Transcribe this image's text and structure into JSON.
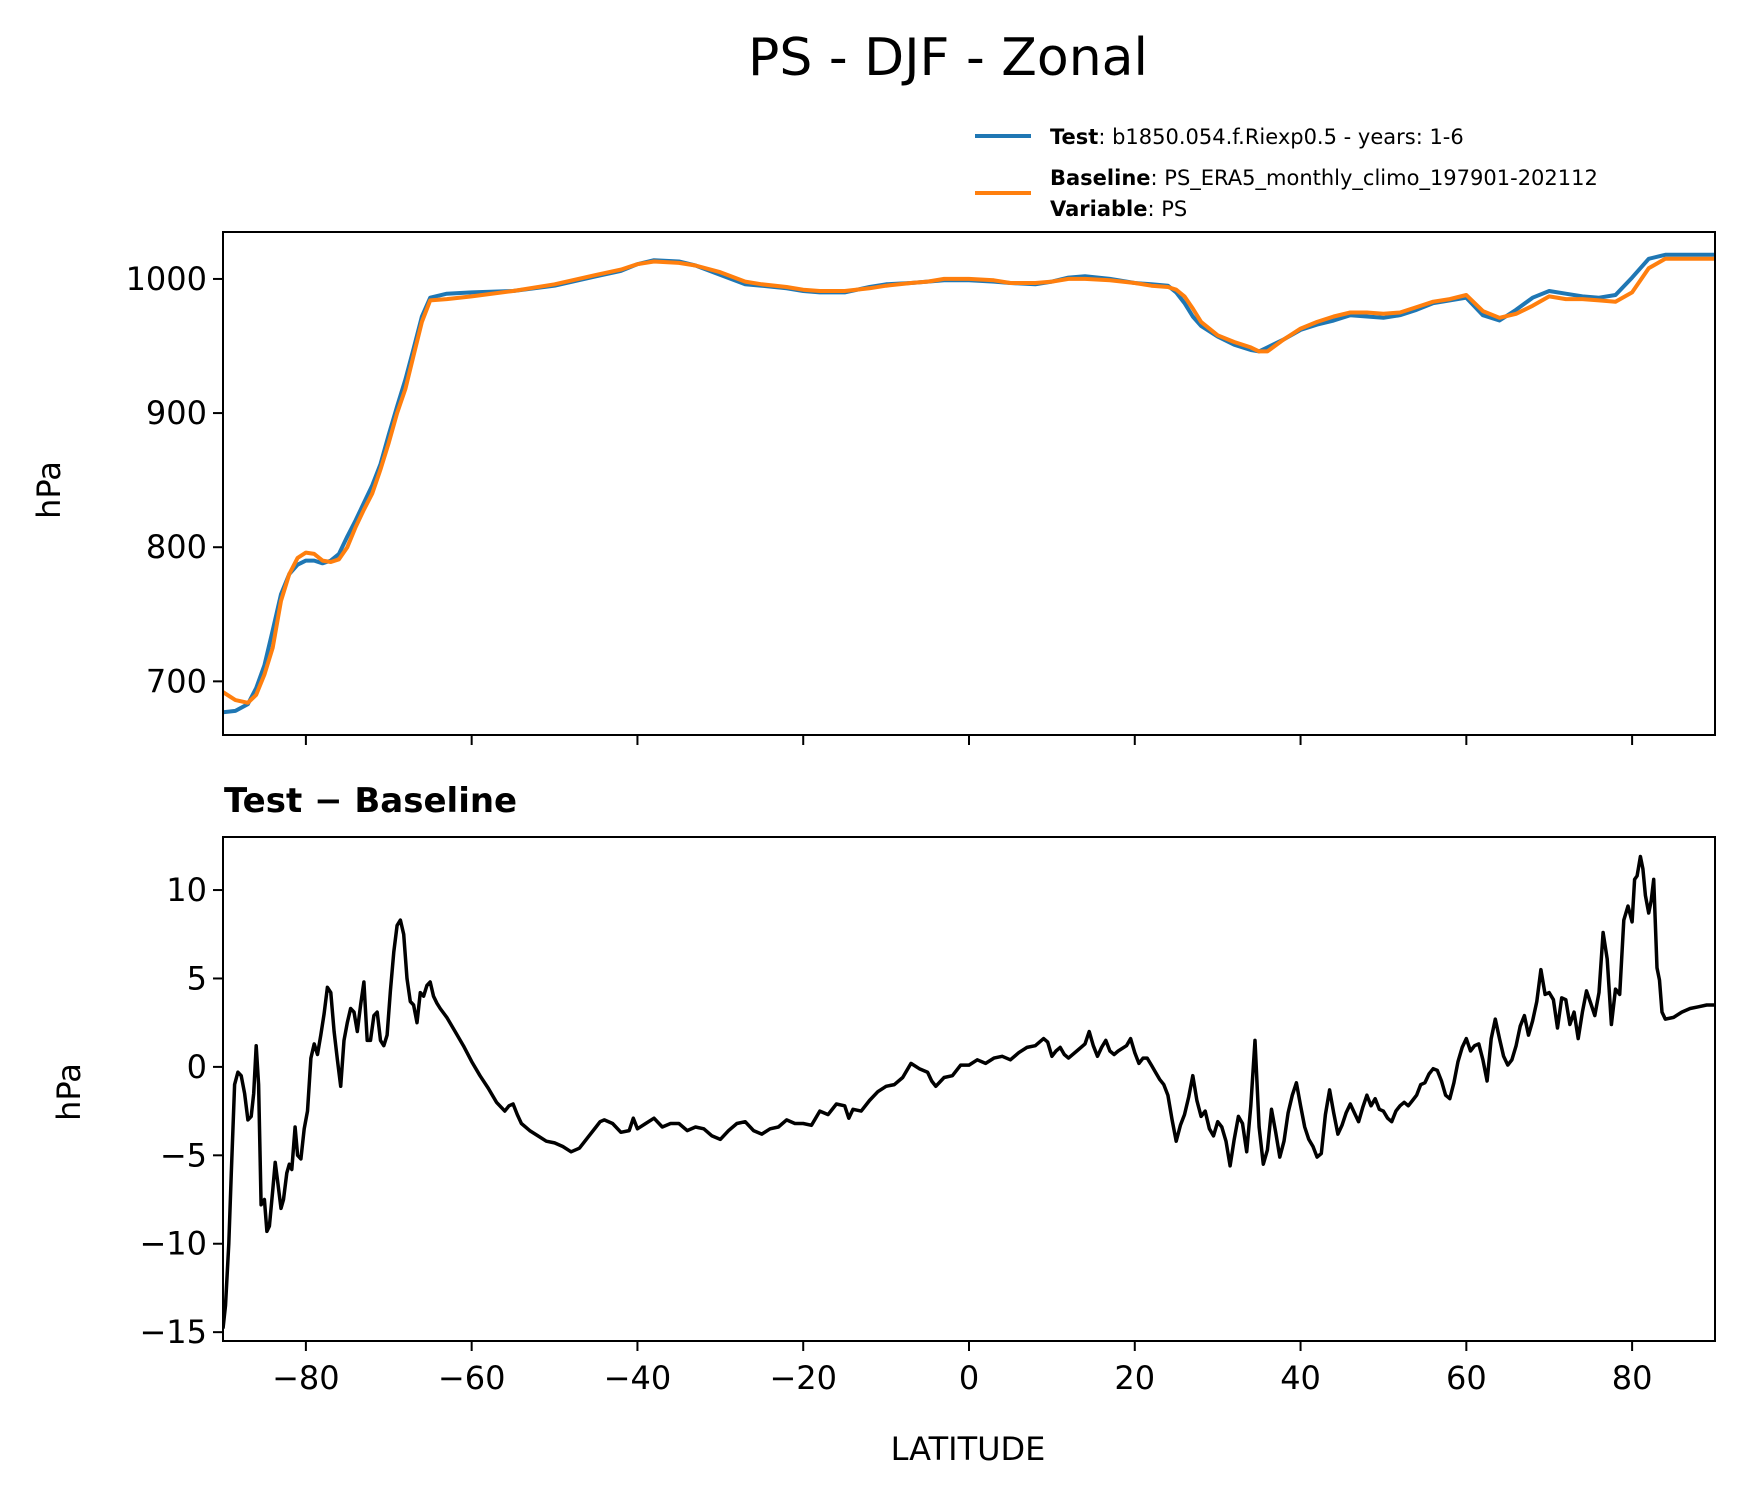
{
  "figure": {
    "title": "PS - DJF - Zonal"
  },
  "chart_data": [
    {
      "type": "line",
      "panel": "top",
      "xlabel": "",
      "ylabel": "hPa",
      "xlim": [
        -90,
        90
      ],
      "ylim": [
        660,
        1035
      ],
      "yticks": [
        700,
        800,
        900,
        1000
      ],
      "yticklabels": [
        "700",
        "800",
        "900",
        "1000"
      ],
      "xticks": [
        -80,
        -60,
        -40,
        -20,
        0,
        20,
        40,
        60,
        80
      ],
      "show_xticklabels": false,
      "grid": false,
      "legend_placement": "above, right",
      "legend": [
        {
          "key": "Test",
          "sep": ": ",
          "text": "b1850.054.f.Riexp0.5 - years: 1-6",
          "color": "#1f77b4"
        },
        {
          "key": "Baseline",
          "sep": ": ",
          "text": "PS_ERA5_monthly_climo_197901-202112",
          "color": "#ff7f0e"
        },
        {
          "key": "Variable",
          "sep": ": ",
          "text": "PS",
          "color": null
        }
      ],
      "series": [
        {
          "name": "Test",
          "color": "#1f77b4",
          "x": [
            -90,
            -88.5,
            -87,
            -86,
            -85,
            -84,
            -83,
            -82,
            -81,
            -80,
            -79,
            -78,
            -77,
            -76,
            -75,
            -74,
            -73,
            -72,
            -71,
            -70,
            -69,
            -68,
            -67,
            -66,
            -65,
            -63,
            -60,
            -55,
            -50,
            -45,
            -42,
            -40,
            -38,
            -35,
            -33,
            -30,
            -27,
            -25,
            -22,
            -20,
            -18,
            -15,
            -12,
            -10,
            -7,
            -5,
            -3,
            0,
            3,
            5,
            8,
            10,
            12,
            14,
            17,
            20,
            22,
            24,
            25,
            26,
            27,
            28,
            30,
            32,
            34,
            35,
            36,
            38,
            40,
            42,
            44,
            46,
            48,
            50,
            52,
            54,
            56,
            58,
            60,
            62,
            64,
            66,
            68,
            70,
            72,
            74,
            76,
            78,
            80,
            82,
            84,
            86,
            88,
            90
          ],
          "y": [
            677,
            678,
            683,
            695,
            712,
            738,
            765,
            780,
            787,
            790,
            790,
            788,
            790,
            795,
            808,
            820,
            833,
            846,
            862,
            884,
            905,
            925,
            948,
            972,
            986,
            989,
            990,
            991,
            995,
            1002,
            1006,
            1011,
            1014,
            1013,
            1010,
            1003,
            996,
            995,
            993,
            991,
            990,
            990,
            994,
            996,
            997,
            998,
            999,
            999,
            998,
            997,
            996,
            998,
            1001,
            1002,
            1000,
            997,
            996,
            995,
            990,
            982,
            972,
            965,
            957,
            951,
            947,
            946,
            949,
            955,
            962,
            966,
            969,
            973,
            972,
            971,
            973,
            977,
            982,
            984,
            986,
            973,
            969,
            977,
            986,
            991,
            989,
            987,
            986,
            988,
            1001,
            1015,
            1018,
            1018,
            1018,
            1018
          ]
        },
        {
          "name": "Baseline",
          "color": "#ff7f0e",
          "x": [
            -90,
            -88.5,
            -87,
            -86,
            -85,
            -84,
            -83,
            -82,
            -81,
            -80,
            -79,
            -78,
            -77,
            -76,
            -75,
            -74,
            -73,
            -72,
            -71,
            -70,
            -69,
            -68,
            -67,
            -66,
            -65,
            -63,
            -60,
            -55,
            -50,
            -45,
            -42,
            -40,
            -38,
            -35,
            -33,
            -30,
            -27,
            -25,
            -22,
            -20,
            -18,
            -15,
            -12,
            -10,
            -7,
            -5,
            -3,
            0,
            3,
            5,
            8,
            10,
            12,
            14,
            17,
            20,
            22,
            24,
            25,
            26,
            27,
            28,
            30,
            32,
            34,
            35,
            36,
            38,
            40,
            42,
            44,
            46,
            48,
            50,
            52,
            54,
            56,
            58,
            60,
            62,
            64,
            66,
            68,
            70,
            72,
            74,
            76,
            78,
            80,
            82,
            84,
            86,
            88,
            90
          ],
          "y": [
            692,
            686,
            684,
            690,
            705,
            725,
            760,
            780,
            792,
            796,
            795,
            790,
            789,
            791,
            800,
            815,
            828,
            840,
            858,
            878,
            900,
            918,
            943,
            968,
            984,
            985,
            987,
            991,
            996,
            1003,
            1007,
            1011,
            1013,
            1012,
            1010,
            1005,
            998,
            996,
            994,
            992,
            991,
            991,
            993,
            995,
            997,
            998,
            1000,
            1000,
            999,
            997,
            997,
            998,
            1000,
            1000,
            999,
            997,
            995,
            994,
            992,
            987,
            978,
            968,
            958,
            953,
            949,
            946,
            946,
            955,
            963,
            968,
            972,
            975,
            975,
            974,
            975,
            979,
            983,
            985,
            988,
            976,
            971,
            974,
            980,
            987,
            985,
            985,
            984,
            983,
            990,
            1008,
            1015,
            1015,
            1015,
            1015
          ]
        }
      ]
    },
    {
      "type": "line",
      "panel": "bottom",
      "title": "Test − Baseline",
      "xlabel": "LATITUDE",
      "ylabel": "hPa",
      "xlim": [
        -90,
        90
      ],
      "ylim": [
        -15.5,
        13
      ],
      "yticks": [
        -15,
        -10,
        -5,
        0,
        5,
        10
      ],
      "yticklabels": [
        "−15",
        "−10",
        "−5",
        "0",
        "5",
        "10"
      ],
      "xticks": [
        -80,
        -60,
        -40,
        -20,
        0,
        20,
        40,
        60,
        80
      ],
      "xticklabels": [
        "−80",
        "−60",
        "−40",
        "−20",
        "0",
        "20",
        "40",
        "60",
        "80"
      ],
      "grid": false,
      "series": [
        {
          "color": "#000000",
          "x": [
            -90,
            -89.7,
            -89.3,
            -89,
            -88.6,
            -88.2,
            -87.8,
            -87.4,
            -87,
            -86.6,
            -86.3,
            -86,
            -85.7,
            -85.4,
            -85,
            -84.7,
            -84.4,
            -84,
            -83.7,
            -83.4,
            -83,
            -82.7,
            -82.3,
            -82,
            -81.7,
            -81.3,
            -81,
            -80.6,
            -80.2,
            -79.8,
            -79.4,
            -79,
            -78.6,
            -78.2,
            -77.8,
            -77.4,
            -77,
            -76.6,
            -76.2,
            -75.8,
            -75.4,
            -75,
            -74.6,
            -74.2,
            -73.8,
            -73.4,
            -73,
            -72.6,
            -72.2,
            -71.8,
            -71.4,
            -71,
            -70.6,
            -70.2,
            -69.8,
            -69.4,
            -69,
            -68.6,
            -68.2,
            -67.8,
            -67.4,
            -67,
            -66.6,
            -66.2,
            -65.8,
            -65.4,
            -65,
            -64.6,
            -64.2,
            -63.8,
            -63,
            -62,
            -61,
            -60,
            -59,
            -58,
            -57,
            -56,
            -55.5,
            -55,
            -54.5,
            -54,
            -53,
            -52,
            -51,
            -50,
            -49,
            -48,
            -47,
            -46,
            -45,
            -44.5,
            -44,
            -43,
            -42,
            -41,
            -40.5,
            -40,
            -39,
            -38,
            -37,
            -36,
            -35,
            -34,
            -33,
            -32,
            -31,
            -30,
            -29,
            -28,
            -27,
            -26,
            -25,
            -24,
            -23,
            -22,
            -21,
            -20,
            -19,
            -18,
            -17,
            -16,
            -15,
            -14.5,
            -14,
            -13,
            -12,
            -11,
            -10,
            -9,
            -8,
            -7,
            -6,
            -5,
            -4.5,
            -4,
            -3,
            -2,
            -1,
            0,
            1,
            2,
            3,
            4,
            5,
            6,
            7,
            8,
            9,
            9.5,
            10,
            10.5,
            11,
            11.5,
            12,
            13,
            14,
            14.5,
            15,
            15.5,
            16,
            16.5,
            17,
            17.5,
            18,
            19,
            19.5,
            20,
            20.5,
            21,
            21.5,
            22,
            22.5,
            23,
            23.5,
            24,
            24.5,
            25,
            25.5,
            26,
            26.5,
            27,
            27.5,
            28,
            28.5,
            29,
            29.5,
            30,
            30.5,
            31,
            31.5,
            32,
            32.5,
            33,
            33.5,
            34,
            34.5,
            35,
            35.5,
            36,
            36.5,
            37,
            37.5,
            38,
            38.5,
            39,
            39.5,
            40,
            40.5,
            41,
            41.5,
            42,
            42.5,
            43,
            43.5,
            44,
            44.5,
            45,
            45.5,
            46,
            46.5,
            47,
            47.5,
            48,
            48.5,
            49,
            49.5,
            50,
            50.5,
            51,
            51.5,
            52,
            52.5,
            53,
            53.5,
            54,
            54.5,
            55,
            55.5,
            56,
            56.5,
            57,
            57.5,
            58,
            58.5,
            59,
            59.5,
            60,
            60.5,
            61,
            61.5,
            62,
            62.5,
            63,
            63.5,
            64,
            64.5,
            65,
            65.5,
            66,
            66.5,
            67,
            67.5,
            68,
            68.5,
            69,
            69.5,
            70,
            70.5,
            71,
            71.5,
            72,
            72.5,
            73,
            73.5,
            74,
            74.5,
            75,
            75.5,
            76,
            76.5,
            77,
            77.5,
            78,
            78.5,
            79,
            79.5,
            80,
            80.3,
            80.6,
            81,
            81.3,
            81.6,
            82,
            82.3,
            82.6,
            83,
            83.3,
            83.6,
            84,
            85,
            86,
            87,
            88,
            89,
            90
          ],
          "y": [
            -14.8,
            -13.5,
            -10,
            -6,
            -1,
            -0.3,
            -0.5,
            -1.5,
            -3,
            -2.8,
            -1.5,
            1.2,
            -1,
            -7.8,
            -7.5,
            -9.3,
            -9,
            -7,
            -5.4,
            -6.5,
            -8,
            -7.5,
            -6,
            -5.5,
            -5.8,
            -3.4,
            -5,
            -5.2,
            -3.5,
            -2.5,
            0.5,
            1.3,
            0.7,
            1.8,
            3,
            4.5,
            4.2,
            2,
            0.4,
            -1.1,
            1.5,
            2.5,
            3.3,
            3.1,
            2,
            3.5,
            4.8,
            1.5,
            1.5,
            2.9,
            3.1,
            1.5,
            1.2,
            1.8,
            4.3,
            6.5,
            8,
            8.3,
            7.5,
            5,
            3.7,
            3.5,
            2.5,
            4.2,
            4,
            4.6,
            4.8,
            4,
            3.6,
            3.3,
            2.8,
            2,
            1.2,
            0.3,
            -0.5,
            -1.2,
            -2,
            -2.5,
            -2.2,
            -2.1,
            -2.7,
            -3.2,
            -3.6,
            -3.9,
            -4.2,
            -4.3,
            -4.5,
            -4.8,
            -4.6,
            -4,
            -3.4,
            -3.1,
            -3,
            -3.2,
            -3.7,
            -3.6,
            -2.9,
            -3.5,
            -3.2,
            -2.9,
            -3.4,
            -3.2,
            -3.2,
            -3.6,
            -3.4,
            -3.5,
            -3.9,
            -4.1,
            -3.6,
            -3.2,
            -3.1,
            -3.6,
            -3.8,
            -3.5,
            -3.4,
            -3,
            -3.2,
            -3.2,
            -3.3,
            -2.5,
            -2.7,
            -2.1,
            -2.2,
            -2.9,
            -2.4,
            -2.5,
            -1.9,
            -1.4,
            -1.1,
            -1,
            -0.6,
            0.2,
            -0.1,
            -0.3,
            -0.8,
            -1.1,
            -0.6,
            -0.5,
            0.1,
            0.1,
            0.4,
            0.2,
            0.5,
            0.6,
            0.4,
            0.8,
            1.1,
            1.2,
            1.6,
            1.4,
            0.6,
            0.9,
            1.1,
            0.7,
            0.5,
            0.9,
            1.3,
            2,
            1.2,
            0.6,
            1.1,
            1.5,
            0.9,
            0.7,
            0.9,
            1.2,
            1.6,
            0.8,
            0.2,
            0.5,
            0.5,
            0.1,
            -0.3,
            -0.7,
            -1,
            -1.6,
            -3,
            -4.2,
            -3.3,
            -2.7,
            -1.7,
            -0.5,
            -1.9,
            -2.8,
            -2.5,
            -3.5,
            -3.9,
            -3.1,
            -3.4,
            -4.2,
            -5.6,
            -4.1,
            -2.8,
            -3.2,
            -4.8,
            -2.2,
            1.5,
            -3.4,
            -5.5,
            -4.7,
            -2.4,
            -3.7,
            -5.1,
            -4.2,
            -2.6,
            -1.6,
            -0.9,
            -2.2,
            -3.4,
            -4.1,
            -4.5,
            -5.1,
            -4.9,
            -2.7,
            -1.3,
            -2.6,
            -3.8,
            -3.3,
            -2.6,
            -2.1,
            -2.6,
            -3.1,
            -2.3,
            -1.6,
            -2.2,
            -1.8,
            -2.4,
            -2.5,
            -2.9,
            -3.1,
            -2.5,
            -2.2,
            -2,
            -2.2,
            -1.9,
            -1.6,
            -1,
            -0.9,
            -0.4,
            -0.1,
            -0.2,
            -0.8,
            -1.6,
            -1.8,
            -0.9,
            0.3,
            1.1,
            1.6,
            0.9,
            1.2,
            1.3,
            0.4,
            -0.8,
            1.6,
            2.7,
            1.6,
            0.6,
            0.1,
            0.4,
            1.2,
            2.3,
            2.9,
            1.8,
            2.6,
            3.7,
            5.5,
            4.1,
            4.2,
            3.8,
            2.2,
            3.9,
            3.8,
            2.4,
            3.1,
            1.6,
            3.1,
            4.3,
            3.6,
            2.9,
            4.2,
            7.6,
            6.1,
            2.4,
            4.4,
            4.1,
            8.3,
            9.1,
            8.2,
            10.6,
            10.8,
            11.9,
            11.2,
            9.7,
            8.7,
            9.4,
            10.6,
            5.6,
            4.9,
            3.1,
            2.7,
            2.8,
            3.1,
            3.3,
            3.4,
            3.5,
            3.5
          ]
        }
      ]
    }
  ]
}
